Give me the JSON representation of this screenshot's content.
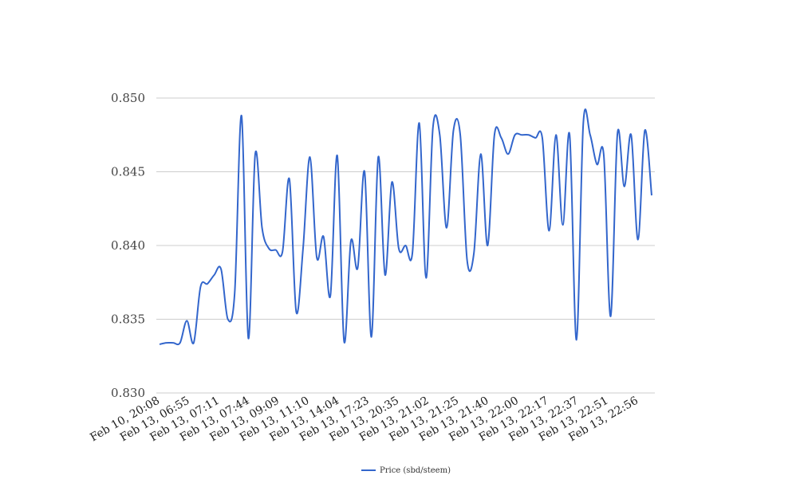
{
  "chart_data": {
    "type": "line",
    "title": "",
    "xlabel": "",
    "ylabel": "",
    "ylim": [
      0.83,
      0.85
    ],
    "y_ticks": [
      "0.850",
      "0.845",
      "0.840",
      "0.835",
      "0.830"
    ],
    "x_tick_labels": [
      "Feb 10, 20:08",
      "Feb 13, 06:55",
      "Feb 13, 07:11",
      "Feb 13, 07:44",
      "Feb 13, 09:09",
      "Feb 13, 11:10",
      "Feb 13, 14:04",
      "Feb 13, 17:23",
      "Feb 13, 20:35",
      "Feb 13, 21:02",
      "Feb 13, 21:25",
      "Feb 13, 21:40",
      "Feb 13, 22:00",
      "Feb 13, 22:17",
      "Feb 13, 22:37",
      "Feb 13, 22:51",
      "Feb 13, 22:56"
    ],
    "grid": true,
    "legend_position": "bottom",
    "series": [
      {
        "name": "Price (sbd/steem)",
        "color": "#3366cc",
        "values": [
          0.8333,
          0.8334,
          0.8334,
          0.8334,
          0.8349,
          0.8334,
          0.8372,
          0.8374,
          0.838,
          0.8384,
          0.835,
          0.8368,
          0.8488,
          0.8337,
          0.8462,
          0.8412,
          0.8398,
          0.8397,
          0.8396,
          0.8445,
          0.8355,
          0.8398,
          0.846,
          0.8392,
          0.8406,
          0.8366,
          0.8461,
          0.8335,
          0.8403,
          0.8385,
          0.845,
          0.8338,
          0.846,
          0.838,
          0.8443,
          0.8398,
          0.84,
          0.8395,
          0.8483,
          0.8378,
          0.848,
          0.8475,
          0.8412,
          0.8478,
          0.8475,
          0.839,
          0.8395,
          0.8462,
          0.84,
          0.8475,
          0.8473,
          0.8462,
          0.8475,
          0.8475,
          0.8475,
          0.8473,
          0.8473,
          0.841,
          0.8475,
          0.8414,
          0.8475,
          0.8336,
          0.8483,
          0.8475,
          0.8455,
          0.8461,
          0.8352,
          0.8476,
          0.844,
          0.8475,
          0.8404,
          0.8478,
          0.8434
        ]
      }
    ]
  }
}
